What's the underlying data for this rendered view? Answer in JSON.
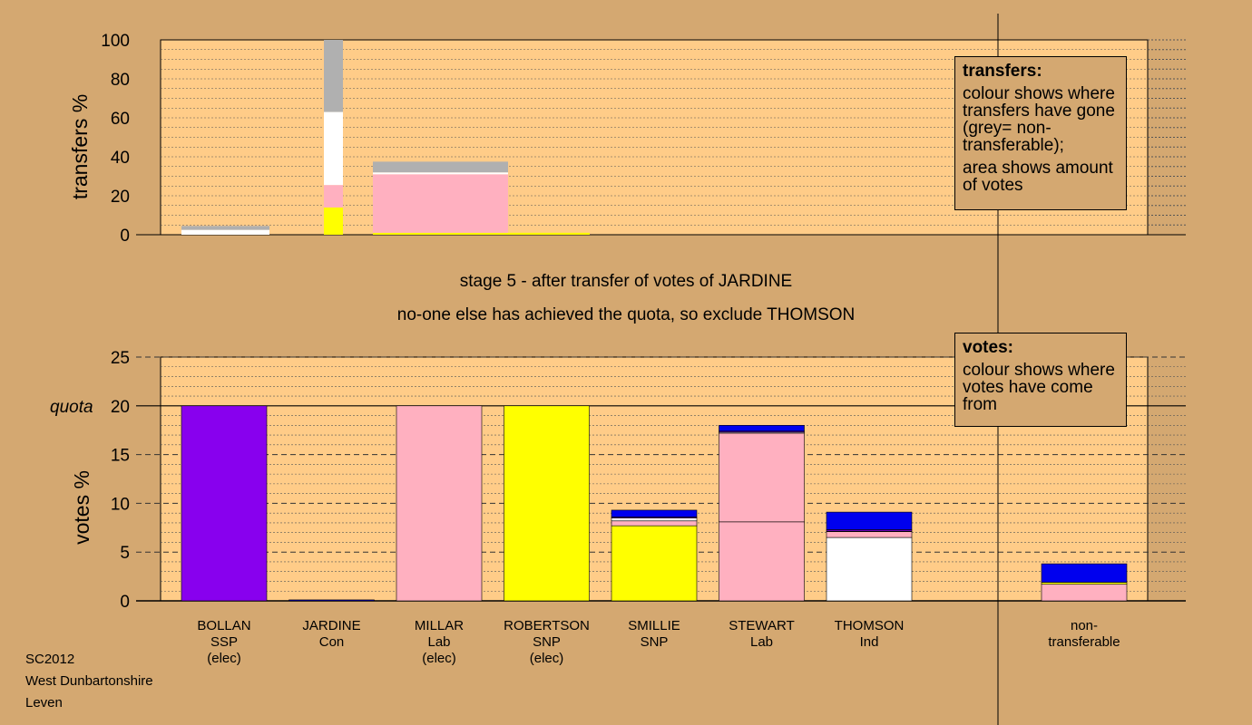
{
  "colors": {
    "page_bg": "#d4a871",
    "plot_bg": "#ffcc88",
    "SSP": "#8800ee",
    "Lab": "#ffb0c0",
    "SNP": "#ffff00",
    "Con": "#0000ee",
    "Ind": "#ffffff",
    "nontransferable": "#b0b0b0"
  },
  "captions": {
    "stage": "stage 5 - after transfer of votes of JARDINE",
    "action": "no-one else has achieved the quota, so exclude THOMSON"
  },
  "legend_transfers": {
    "heading": "transfers:",
    "para1": "colour shows where transfers have gone (grey= non-transferable);",
    "para2": "area shows amount of votes"
  },
  "legend_votes": {
    "heading": "votes:",
    "para1": "colour shows where votes have come from"
  },
  "footer": {
    "line1": "SC2012",
    "line2": "West Dunbartonshire",
    "line3": "Leven"
  },
  "chart_data": [
    {
      "type": "bar",
      "ylabel": "transfers %",
      "ylim": [
        0,
        100
      ],
      "yticks": [
        0,
        20,
        40,
        60,
        80,
        100
      ],
      "bars": [
        {
          "candidate": "BOLLAN",
          "share": 0.85,
          "segments": [
            {
              "party": "Ind",
              "value": 2.5
            },
            {
              "party": "nontransferable",
              "value": 2
            }
          ]
        },
        {
          "candidate": "ROBERTSON",
          "share": 0.18,
          "segments": [
            {
              "party": "SNP",
              "value": 14
            },
            {
              "party": "Lab",
              "value": 11.5
            },
            {
              "party": "Ind",
              "value": 37.5
            },
            {
              "party": "nontransferable",
              "value": 37
            }
          ]
        },
        {
          "candidate": "JARDINE",
          "share": 1.0,
          "segments": [
            {
              "party": "SNP",
              "value": 1
            },
            {
              "party": "Lab",
              "value": 30
            },
            {
              "party": "Ind",
              "value": 1
            },
            {
              "party": "nontransferable",
              "value": 5.5
            }
          ]
        },
        {
          "candidate": "JARDINE",
          "share": 0.76,
          "segments": [
            {
              "party": "SNP",
              "value": 1
            }
          ]
        }
      ]
    },
    {
      "type": "bar",
      "ylabel": "votes %",
      "ylim": [
        0,
        25
      ],
      "yticks": [
        0,
        5,
        10,
        15,
        20,
        25
      ],
      "quota": 20,
      "quota_label": "quota",
      "categories": [
        {
          "name": "BOLLAN",
          "party": "SSP",
          "note": "(elec)"
        },
        {
          "name": "JARDINE",
          "party": "Con",
          "note": ""
        },
        {
          "name": "MILLAR",
          "party": "Lab",
          "note": "(elec)"
        },
        {
          "name": "ROBERTSON",
          "party": "SNP",
          "note": "(elec)"
        },
        {
          "name": "SMILLIE",
          "party": "SNP",
          "note": ""
        },
        {
          "name": "STEWART",
          "party": "Lab",
          "note": ""
        },
        {
          "name": "THOMSON",
          "party": "Ind",
          "note": ""
        },
        {
          "name": "non-",
          "party": "transferable",
          "note": ""
        }
      ],
      "stacks": [
        [
          {
            "party": "SSP",
            "value": 20
          }
        ],
        [
          {
            "party": "Con",
            "value": 0.1
          }
        ],
        [
          {
            "party": "Lab",
            "value": 20
          }
        ],
        [
          {
            "party": "SNP",
            "value": 20
          }
        ],
        [
          {
            "party": "SNP",
            "value": 7.7
          },
          {
            "party": "Lab",
            "value": 0.5
          },
          {
            "party": "Ind",
            "value": 0.3
          },
          {
            "party": "SSP",
            "value": 0.1
          },
          {
            "party": "Con",
            "value": 0.7
          }
        ],
        [
          {
            "party": "Lab",
            "value": 8.1
          },
          {
            "party": "Lab",
            "value": 9.1
          },
          {
            "party": "Ind",
            "value": 0.1
          },
          {
            "party": "SSP",
            "value": 0.1
          },
          {
            "party": "Con",
            "value": 0.6
          }
        ],
        [
          {
            "party": "Ind",
            "value": 6.5
          },
          {
            "party": "Lab",
            "value": 0.6
          },
          {
            "party": "SNP",
            "value": 0.05
          },
          {
            "party": "SSP",
            "value": 0.15
          },
          {
            "party": "Con",
            "value": 1.8
          }
        ],
        [
          {
            "party": "Lab",
            "value": 1.7
          },
          {
            "party": "SNP",
            "value": 0.2
          },
          {
            "party": "Con",
            "value": 1.9
          }
        ]
      ]
    }
  ]
}
